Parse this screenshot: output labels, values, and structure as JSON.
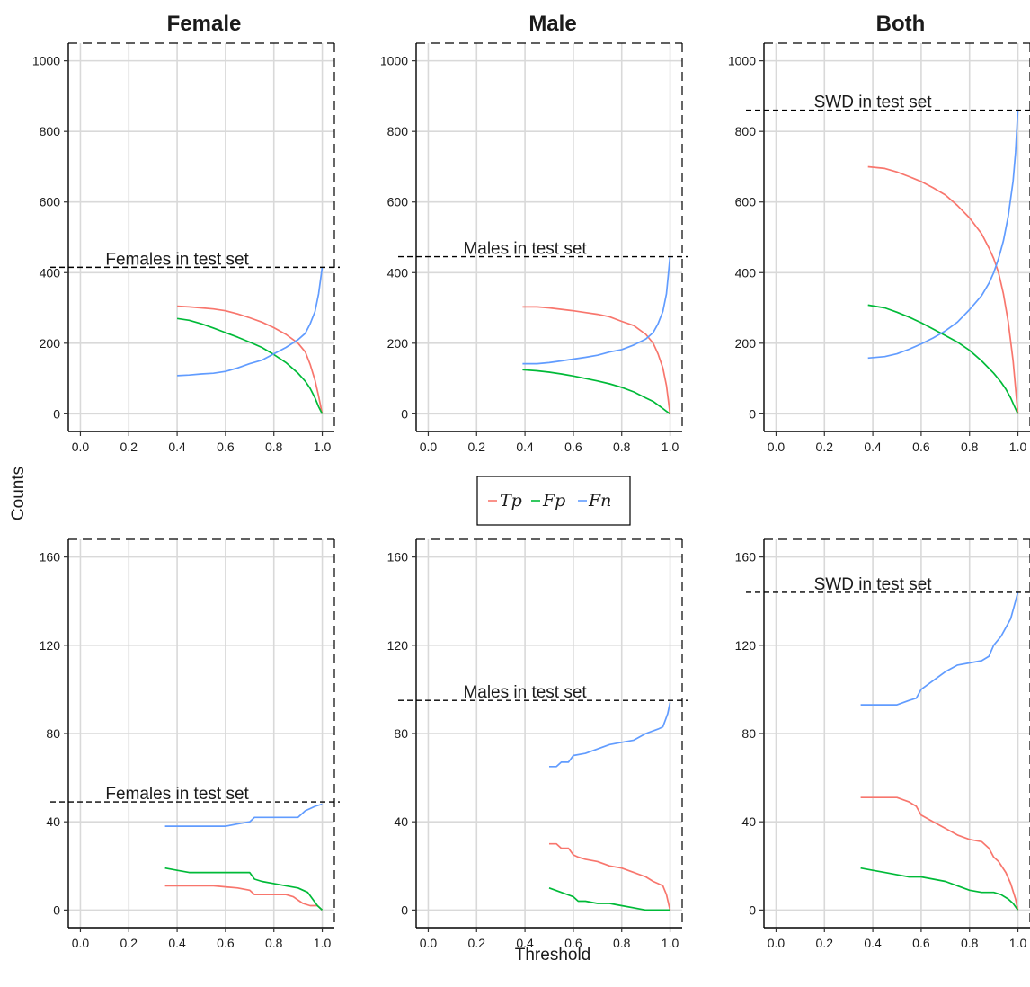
{
  "figure": {
    "col_titles": [
      "Female",
      "Male",
      "Both"
    ],
    "xlabel": "Threshold",
    "ylabel": "Counts"
  },
  "legend": {
    "entries": [
      {
        "key": "tp",
        "label": "Tp",
        "color": "#F8766D"
      },
      {
        "key": "fp",
        "label": "Fp",
        "color": "#00BA38"
      },
      {
        "key": "fn",
        "label": "Fn",
        "color": "#619CFF"
      }
    ]
  },
  "chart_data": [
    {
      "type": "line",
      "panel": "Female",
      "row": 1,
      "title": "Female",
      "xlim": [
        -0.05,
        1.05
      ],
      "ylim": [
        -50,
        1050
      ],
      "xticks": [
        "0.0",
        "0.2",
        "0.4",
        "0.6",
        "0.8",
        "1.0"
      ],
      "yticks": [
        "0",
        "200",
        "400",
        "600",
        "800",
        "1000"
      ],
      "grid": true,
      "hline": {
        "y": 415,
        "label": "Females in test set",
        "label_x": 0.4
      },
      "series": [
        {
          "key": "tp",
          "x": [
            0.4,
            0.45,
            0.5,
            0.55,
            0.6,
            0.65,
            0.7,
            0.75,
            0.8,
            0.85,
            0.9,
            0.93,
            0.95,
            0.97,
            0.985,
            1.0
          ],
          "y": [
            305,
            303,
            300,
            297,
            292,
            283,
            272,
            260,
            244,
            225,
            200,
            175,
            140,
            95,
            50,
            0
          ]
        },
        {
          "key": "fp",
          "x": [
            0.4,
            0.45,
            0.5,
            0.55,
            0.6,
            0.65,
            0.7,
            0.75,
            0.8,
            0.85,
            0.9,
            0.93,
            0.95,
            0.97,
            0.985,
            1.0
          ],
          "y": [
            270,
            265,
            255,
            243,
            230,
            217,
            203,
            188,
            168,
            145,
            115,
            92,
            72,
            45,
            20,
            0
          ]
        },
        {
          "key": "fn",
          "x": [
            0.4,
            0.45,
            0.5,
            0.55,
            0.6,
            0.65,
            0.7,
            0.75,
            0.8,
            0.85,
            0.9,
            0.93,
            0.95,
            0.97,
            0.985,
            1.0
          ],
          "y": [
            108,
            110,
            113,
            115,
            120,
            130,
            142,
            152,
            170,
            188,
            210,
            228,
            255,
            290,
            340,
            415
          ]
        }
      ]
    },
    {
      "type": "line",
      "panel": "Male",
      "row": 1,
      "title": "Male",
      "xlim": [
        -0.05,
        1.05
      ],
      "ylim": [
        -50,
        1050
      ],
      "xticks": [
        "0.0",
        "0.2",
        "0.4",
        "0.6",
        "0.8",
        "1.0"
      ],
      "yticks": [
        "0",
        "200",
        "400",
        "600",
        "800",
        "1000"
      ],
      "grid": true,
      "hline": {
        "y": 445,
        "label": "Males in test set",
        "label_x": 0.4
      },
      "series": [
        {
          "key": "tp",
          "x": [
            0.39,
            0.45,
            0.5,
            0.55,
            0.6,
            0.65,
            0.7,
            0.75,
            0.8,
            0.85,
            0.9,
            0.93,
            0.95,
            0.97,
            0.985,
            1.0
          ],
          "y": [
            303,
            303,
            300,
            296,
            292,
            287,
            282,
            275,
            262,
            250,
            225,
            200,
            170,
            130,
            80,
            0
          ]
        },
        {
          "key": "fp",
          "x": [
            0.39,
            0.45,
            0.5,
            0.55,
            0.6,
            0.65,
            0.7,
            0.75,
            0.8,
            0.85,
            0.9,
            0.93,
            0.95,
            0.97,
            0.985,
            1.0
          ],
          "y": [
            125,
            122,
            118,
            113,
            107,
            100,
            93,
            85,
            75,
            62,
            45,
            35,
            25,
            15,
            7,
            0
          ]
        },
        {
          "key": "fn",
          "x": [
            0.39,
            0.45,
            0.5,
            0.55,
            0.6,
            0.65,
            0.7,
            0.75,
            0.8,
            0.85,
            0.9,
            0.93,
            0.95,
            0.97,
            0.985,
            1.0
          ],
          "y": [
            142,
            142,
            145,
            150,
            155,
            160,
            166,
            175,
            182,
            195,
            212,
            230,
            255,
            290,
            340,
            445
          ]
        }
      ]
    },
    {
      "type": "line",
      "panel": "Both",
      "row": 1,
      "title": "Both",
      "xlim": [
        -0.05,
        1.05
      ],
      "ylim": [
        -50,
        1050
      ],
      "xticks": [
        "0.0",
        "0.2",
        "0.4",
        "0.6",
        "0.8",
        "1.0"
      ],
      "yticks": [
        "0",
        "200",
        "400",
        "600",
        "800",
        "1000"
      ],
      "grid": true,
      "hline": {
        "y": 860,
        "label": "SWD in test set",
        "label_x": 0.4
      },
      "series": [
        {
          "key": "tp",
          "x": [
            0.38,
            0.45,
            0.5,
            0.55,
            0.6,
            0.65,
            0.7,
            0.75,
            0.8,
            0.85,
            0.88,
            0.9,
            0.92,
            0.94,
            0.96,
            0.98,
            1.0
          ],
          "y": [
            700,
            695,
            685,
            672,
            658,
            640,
            620,
            590,
            555,
            510,
            470,
            440,
            400,
            340,
            260,
            150,
            0
          ]
        },
        {
          "key": "fp",
          "x": [
            0.38,
            0.45,
            0.5,
            0.55,
            0.6,
            0.65,
            0.7,
            0.75,
            0.8,
            0.85,
            0.9,
            0.93,
            0.95,
            0.97,
            0.985,
            1.0
          ],
          "y": [
            308,
            300,
            288,
            274,
            258,
            240,
            222,
            203,
            180,
            150,
            115,
            90,
            70,
            45,
            22,
            0
          ]
        },
        {
          "key": "fn",
          "x": [
            0.38,
            0.45,
            0.5,
            0.55,
            0.6,
            0.65,
            0.7,
            0.75,
            0.8,
            0.85,
            0.88,
            0.9,
            0.92,
            0.94,
            0.96,
            0.98,
            0.99,
            1.0
          ],
          "y": [
            158,
            162,
            170,
            183,
            198,
            215,
            235,
            260,
            295,
            335,
            370,
            400,
            440,
            490,
            560,
            660,
            740,
            860
          ]
        }
      ]
    },
    {
      "type": "line",
      "panel": "Female",
      "row": 2,
      "title": "",
      "xlim": [
        -0.05,
        1.05
      ],
      "ylim": [
        -8,
        168
      ],
      "xticks": [
        "0.0",
        "0.2",
        "0.4",
        "0.6",
        "0.8",
        "1.0"
      ],
      "yticks": [
        "0",
        "40",
        "80",
        "120",
        "160"
      ],
      "grid": true,
      "hline": {
        "y": 49,
        "label": "Females in test set",
        "label_x": 0.4
      },
      "series": [
        {
          "key": "tp",
          "x": [
            0.35,
            0.55,
            0.6,
            0.65,
            0.7,
            0.72,
            0.8,
            0.85,
            0.88,
            0.92,
            0.95,
            0.98,
            1.0
          ],
          "y": [
            11,
            11,
            10.5,
            10,
            9,
            7,
            7,
            7,
            6,
            3,
            2,
            2,
            0
          ]
        },
        {
          "key": "fp",
          "x": [
            0.35,
            0.4,
            0.45,
            0.5,
            0.7,
            0.72,
            0.75,
            0.8,
            0.85,
            0.9,
            0.94,
            0.96,
            0.98,
            1.0
          ],
          "y": [
            19,
            18,
            17,
            17,
            17,
            14,
            13,
            12,
            11,
            10,
            8,
            5,
            2,
            0
          ]
        },
        {
          "key": "fn",
          "x": [
            0.35,
            0.6,
            0.65,
            0.7,
            0.72,
            0.75,
            0.9,
            0.93,
            0.95,
            0.97,
            1.0
          ],
          "y": [
            38,
            38,
            39,
            40,
            42,
            42,
            42,
            45,
            46,
            47,
            48
          ]
        }
      ]
    },
    {
      "type": "line",
      "panel": "Male",
      "row": 2,
      "title": "",
      "xlim": [
        -0.05,
        1.05
      ],
      "ylim": [
        -8,
        168
      ],
      "xticks": [
        "0.0",
        "0.2",
        "0.4",
        "0.6",
        "0.8",
        "1.0"
      ],
      "yticks": [
        "0",
        "40",
        "80",
        "120",
        "160"
      ],
      "grid": true,
      "hline": {
        "y": 95,
        "label": "Males in test set",
        "label_x": 0.4
      },
      "series": [
        {
          "key": "tp",
          "x": [
            0.5,
            0.53,
            0.55,
            0.58,
            0.6,
            0.62,
            0.65,
            0.7,
            0.75,
            0.8,
            0.85,
            0.9,
            0.93,
            0.95,
            0.97,
            0.985,
            1.0
          ],
          "y": [
            30,
            30,
            28,
            28,
            25,
            24,
            23,
            22,
            20,
            19,
            17,
            15,
            13,
            12,
            11,
            7,
            0
          ]
        },
        {
          "key": "fp",
          "x": [
            0.5,
            0.55,
            0.6,
            0.62,
            0.65,
            0.7,
            0.75,
            0.8,
            0.85,
            0.9,
            0.92,
            1.0
          ],
          "y": [
            10,
            8,
            6,
            4,
            4,
            3,
            3,
            2,
            1,
            0,
            0,
            0
          ]
        },
        {
          "key": "fn",
          "x": [
            0.5,
            0.53,
            0.55,
            0.58,
            0.6,
            0.65,
            0.7,
            0.75,
            0.8,
            0.85,
            0.9,
            0.95,
            0.97,
            0.98,
            0.99,
            1.0
          ],
          "y": [
            65,
            65,
            67,
            67,
            70,
            71,
            73,
            75,
            76,
            77,
            80,
            82,
            83,
            86,
            89,
            94
          ]
        }
      ]
    },
    {
      "type": "line",
      "panel": "Both",
      "row": 2,
      "title": "",
      "xlim": [
        -0.05,
        1.05
      ],
      "ylim": [
        -8,
        168
      ],
      "xticks": [
        "0.0",
        "0.2",
        "0.4",
        "0.6",
        "0.8",
        "1.0"
      ],
      "yticks": [
        "0",
        "40",
        "80",
        "120",
        "160"
      ],
      "grid": true,
      "hline": {
        "y": 144,
        "label": "SWD in test set",
        "label_x": 0.4
      },
      "series": [
        {
          "key": "tp",
          "x": [
            0.35,
            0.5,
            0.55,
            0.58,
            0.6,
            0.65,
            0.7,
            0.75,
            0.8,
            0.85,
            0.88,
            0.9,
            0.92,
            0.95,
            0.97,
            0.99,
            1.0
          ],
          "y": [
            51,
            51,
            49,
            47,
            43,
            40,
            37,
            34,
            32,
            31,
            28,
            24,
            22,
            17,
            12,
            5,
            0
          ]
        },
        {
          "key": "fp",
          "x": [
            0.35,
            0.4,
            0.45,
            0.5,
            0.55,
            0.6,
            0.65,
            0.7,
            0.75,
            0.8,
            0.85,
            0.9,
            0.93,
            0.96,
            0.98,
            1.0
          ],
          "y": [
            19,
            18,
            17,
            16,
            15,
            15,
            14,
            13,
            11,
            9,
            8,
            8,
            7,
            5,
            3,
            0
          ]
        },
        {
          "key": "fn",
          "x": [
            0.35,
            0.48,
            0.5,
            0.55,
            0.58,
            0.6,
            0.65,
            0.7,
            0.75,
            0.8,
            0.85,
            0.88,
            0.9,
            0.93,
            0.95,
            0.97,
            0.99,
            1.0
          ],
          "y": [
            93,
            93,
            93,
            95,
            96,
            100,
            104,
            108,
            111,
            112,
            113,
            115,
            120,
            124,
            128,
            132,
            140,
            144
          ]
        }
      ]
    }
  ]
}
